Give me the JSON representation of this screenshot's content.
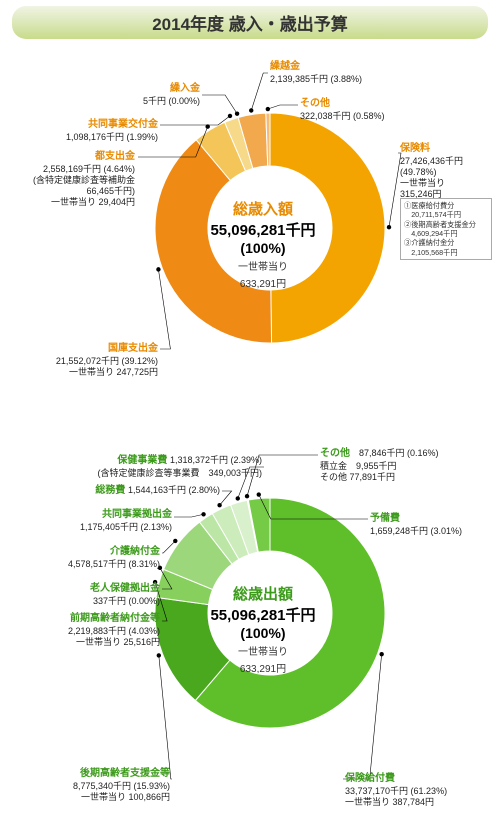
{
  "title": "2014年度 歳入・歳出予算",
  "revenue_chart": {
    "type": "donut",
    "center_title": "総歳入額",
    "total": "55,096,281千円",
    "total_pct": "(100%)",
    "per_household": "一世帯当り",
    "per_household_amount": "633,291円",
    "inner_radius": 62,
    "outer_radius": 115,
    "slices": [
      {
        "key": "保険料",
        "pct": 49.78,
        "amount": "27,426,436千円 (49.78%)",
        "sub1": "一世帯当り",
        "sub2": "315,246円",
        "color": "#f4a400"
      },
      {
        "key": "国庫支出金",
        "pct": 39.12,
        "amount": "21,552,072千円 (39.12%)",
        "sub1": "一世帯当り 247,725円",
        "color": "#ef8a15"
      },
      {
        "key": "都支出金",
        "pct": 4.64,
        "amount": "2,558,169千円 (4.64%)",
        "sub1": "(含特定健康診査等補助金",
        "sub2": "66,465千円)",
        "sub3": "一世帯当り 29,404円",
        "color": "#f4c65a"
      },
      {
        "key": "共同事業交付金",
        "pct": 1.99,
        "amount": "1,098,176千円 (1.99%)",
        "color": "#f7d98a"
      },
      {
        "key": "繰入金",
        "pct": 0.0,
        "amount": "5千円 (0.00%)",
        "color": "#fae5b0"
      },
      {
        "key": "繰越金",
        "pct": 3.88,
        "amount": "2,139,385千円 (3.88%)",
        "color": "#f2a94d"
      },
      {
        "key": "その他",
        "pct": 0.58,
        "amount": "322,038千円 (0.58%)",
        "color": "#f4bc78"
      }
    ],
    "note_lines": [
      "①医療給付費分",
      "　20,711,574千円",
      "②後期高齢者支援金分",
      "　4,609,294千円",
      "③介護納付金分",
      "　2,105,568千円"
    ]
  },
  "expense_chart": {
    "type": "donut",
    "center_title": "総歳出額",
    "total": "55,096,281千円",
    "total_pct": "(100%)",
    "per_household": "一世帯当り",
    "per_household_amount": "633,291円",
    "inner_radius": 62,
    "outer_radius": 115,
    "slices": [
      {
        "key": "保険給付費",
        "pct": 61.23,
        "amount": "33,737,170千円 (61.23%)",
        "sub1": "一世帯当り 387,784円",
        "color": "#5fbf2a"
      },
      {
        "key": "後期高齢者支援金等",
        "pct": 15.93,
        "amount": "8,775,340千円 (15.93%)",
        "sub1": "一世帯当り 100,866円",
        "color": "#4aa81f"
      },
      {
        "key": "前期高齢者納付金等",
        "pct": 4.03,
        "amount": "2,219,883千円 (4.03%)",
        "sub1": "一世帯当り 25,516円",
        "color": "#88d05e"
      },
      {
        "key": "老人保健拠出金",
        "pct": 0.0,
        "amount": "337千円 (0.00%)",
        "color": "#a8de8c"
      },
      {
        "key": "介護納付金",
        "pct": 8.31,
        "amount": "4,578,517千円 (8.31%)",
        "color": "#9dd77b"
      },
      {
        "key": "共同事業拠出金",
        "pct": 2.13,
        "amount": "1,175,405千円 (2.13%)",
        "color": "#bce6a5"
      },
      {
        "key": "総務費",
        "pct": 2.8,
        "amount": "1,544,163千円 (2.80%)",
        "color": "#cdecbb"
      },
      {
        "key": "保健事業費",
        "pct": 2.39,
        "amount": "1,318,372千円 (2.39%)",
        "sub1": "(含特定健康診査等事業費　349,003千円)",
        "color": "#d9f0cd"
      },
      {
        "key": "その他",
        "pct": 0.16,
        "amount": "87,846千円 (0.16%)",
        "sub1": "積立金　9,955千円",
        "sub2": "その他 77,891千円",
        "color": "#e6f5dd"
      },
      {
        "key": "予備費",
        "pct": 3.01,
        "amount": "1,659,248千円 (3.01%)",
        "color": "#75ca46"
      }
    ]
  },
  "colors": {
    "title_bg_from": "#f0f4e4",
    "title_bg_to": "#c8db8a",
    "revenue_accent": "#e88b00",
    "expense_accent": "#3d9b1c"
  }
}
